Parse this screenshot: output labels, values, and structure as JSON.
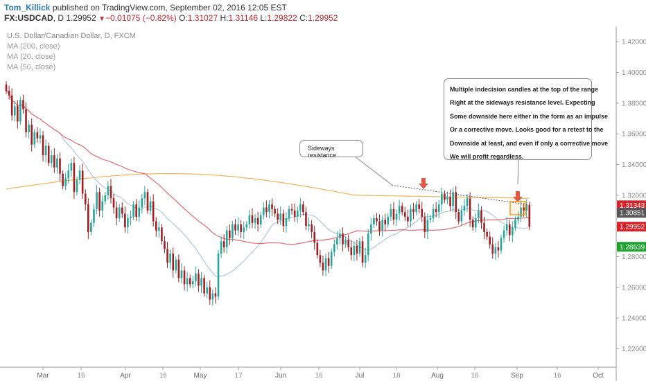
{
  "header": {
    "user": "Tom_Killick",
    "published_text": "published on TradingView.com, September 02, 2016 12:05 EST",
    "symbol": "FX:USDCAD",
    "interval": "D",
    "last": "1.29952",
    "change": "−0.01075 (−0.82%)",
    "open_label": "O:",
    "open": "1.31027",
    "high_label": "H:",
    "high": "1.31146",
    "low_label": "L:",
    "low": "1.29822",
    "close_label": "C:",
    "close": "1.29952",
    "down_marker": "▼"
  },
  "legend": {
    "title": "U.S. Dollar/Canadian Dollar, D, FXCM",
    "ma200": "MA (200, close)",
    "ma20": "MA (20, close)",
    "ma50": "MA (50, close)"
  },
  "annotations": {
    "sideways": "Sideways resistance",
    "main_lines": [
      "Multiple indecision candles at the top of the range",
      "Right at the sideways resistance level. Expecting",
      "Some downside here either in the form as an impulse",
      "Or a corrective move. Looks good for a retest to the",
      "Downside at least, and even if only a corrective move",
      "We will profit regardless."
    ]
  },
  "colors": {
    "up_candle": "#26a69a",
    "down_candle": "#a11d21",
    "ma200": "#f5b25a",
    "ma20": "#a8c4d8",
    "ma50": "#e8696e",
    "arrow": "#e05a44",
    "highlight_box": "#f39a1e",
    "price_red": "#d3252c",
    "price_gray": "#555555",
    "price_green": "#1fa12f"
  },
  "chart_data": {
    "type": "candlestick",
    "x_ticks": [
      "Mar",
      "16",
      "Apr",
      "16",
      "May",
      "17",
      "Jun",
      "16",
      "Jul",
      "18",
      "Aug",
      "16",
      "Sep",
      "16",
      "Oct"
    ],
    "y_ticks": [
      "1.42000",
      "1.40000",
      "1.38000",
      "1.36000",
      "1.34000",
      "1.32000",
      "1.30000",
      "1.28000",
      "1.26000",
      "1.24000",
      "1.22000"
    ],
    "ylim": [
      1.208,
      1.43
    ],
    "price_labels": [
      {
        "value": 1.31343,
        "text": "1.31343",
        "color": "#d3252c"
      },
      {
        "value": 1.29952,
        "text": "1.29952",
        "color": "#d3252c"
      },
      {
        "value": 1.30851,
        "text": "1.30851",
        "color": "#555555"
      },
      {
        "value": 1.28639,
        "text": "1.28639",
        "color": "#1fa12f"
      }
    ],
    "closes": [
      1.388,
      1.385,
      1.372,
      1.378,
      1.368,
      1.382,
      1.376,
      1.361,
      1.366,
      1.353,
      1.361,
      1.357,
      1.359,
      1.346,
      1.352,
      1.341,
      1.346,
      1.338,
      1.344,
      1.334,
      1.326,
      1.331,
      1.336,
      1.341,
      1.322,
      1.33,
      1.336,
      1.321,
      1.314,
      1.296,
      1.302,
      1.311,
      1.322,
      1.31,
      1.316,
      1.32,
      1.326,
      1.318,
      1.312,
      1.305,
      1.312,
      1.308,
      1.299,
      1.305,
      1.306,
      1.314,
      1.306,
      1.312,
      1.318,
      1.322,
      1.31,
      1.316,
      1.303,
      1.297,
      1.299,
      1.29,
      1.285,
      1.276,
      1.282,
      1.271,
      1.278,
      1.266,
      1.271,
      1.262,
      1.266,
      1.262,
      1.264,
      1.269,
      1.261,
      1.266,
      1.256,
      1.26,
      1.252,
      1.256,
      1.254,
      1.282,
      1.29,
      1.286,
      1.297,
      1.292,
      1.301,
      1.297,
      1.301,
      1.296,
      1.299,
      1.301,
      1.307,
      1.302,
      1.305,
      1.301,
      1.307,
      1.312,
      1.309,
      1.314,
      1.311,
      1.308,
      1.304,
      1.308,
      1.3,
      1.305,
      1.311,
      1.31,
      1.306,
      1.31,
      1.314,
      1.309,
      1.3,
      1.301,
      1.296,
      1.289,
      1.281,
      1.276,
      1.271,
      1.279,
      1.274,
      1.283,
      1.288,
      1.292,
      1.295,
      1.288,
      1.291,
      1.286,
      1.281,
      1.287,
      1.282,
      1.29,
      1.276,
      1.281,
      1.295,
      1.301,
      1.305,
      1.303,
      1.297,
      1.304,
      1.301,
      1.306,
      1.311,
      1.304,
      1.308,
      1.313,
      1.309,
      1.306,
      1.303,
      1.311,
      1.309,
      1.314,
      1.311,
      1.306,
      1.296,
      1.304,
      1.305,
      1.311,
      1.309,
      1.314,
      1.321,
      1.317,
      1.319,
      1.313,
      1.322,
      1.309,
      1.303,
      1.31,
      1.313,
      1.318,
      1.304,
      1.299,
      1.305,
      1.31,
      1.302,
      1.296,
      1.293,
      1.288,
      1.282,
      1.286,
      1.284,
      1.292,
      1.297,
      1.301,
      1.294,
      1.299,
      1.304,
      1.306,
      1.312,
      1.31,
      1.3135,
      1.2995
    ]
  }
}
